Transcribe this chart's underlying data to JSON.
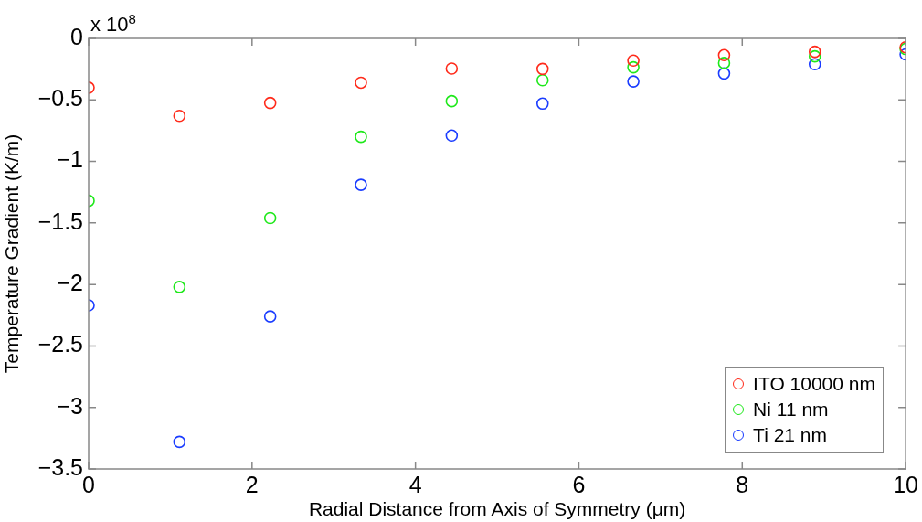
{
  "chart_data": {
    "type": "scatter",
    "xlabel": "Radial Distance from Axis of Symmetry (μm)",
    "ylabel": "Temperature Gradient (K/m)",
    "annotations": [
      "x 10$^{8}$"
    ],
    "x": [
      0,
      1.111,
      2.222,
      3.333,
      4.444,
      5.556,
      6.667,
      7.778,
      8.889,
      10
    ],
    "series": [
      {
        "name": "ITO 10000 nm",
        "color": "#ff2a1a",
        "values": [
          -0.4,
          -0.63,
          -0.525,
          -0.36,
          -0.245,
          -0.248,
          -0.18,
          -0.136,
          -0.109,
          -0.072
        ]
      },
      {
        "name": "Ni 11 nm",
        "color": "#1ee81a",
        "values": [
          -1.32,
          -2.02,
          -1.46,
          -0.8,
          -0.51,
          -0.34,
          -0.235,
          -0.2,
          -0.146,
          -0.086
        ]
      },
      {
        "name": "Ti 21 nm",
        "color": "#1a3cff",
        "values": [
          -2.17,
          -3.28,
          -2.26,
          -1.19,
          -0.79,
          -0.53,
          -0.35,
          -0.285,
          -0.21,
          -0.13
        ]
      }
    ],
    "xlim": [
      0,
      10
    ],
    "xticks": [
      0,
      2,
      4,
      6,
      8,
      10
    ],
    "ylim": [
      -3.5,
      0
    ],
    "yticks": [
      -3.5,
      -3,
      -2.5,
      -2,
      -1.5,
      -1,
      -0.5,
      0
    ],
    "grid": false,
    "legend": "bottom right",
    "marker": "circle"
  }
}
